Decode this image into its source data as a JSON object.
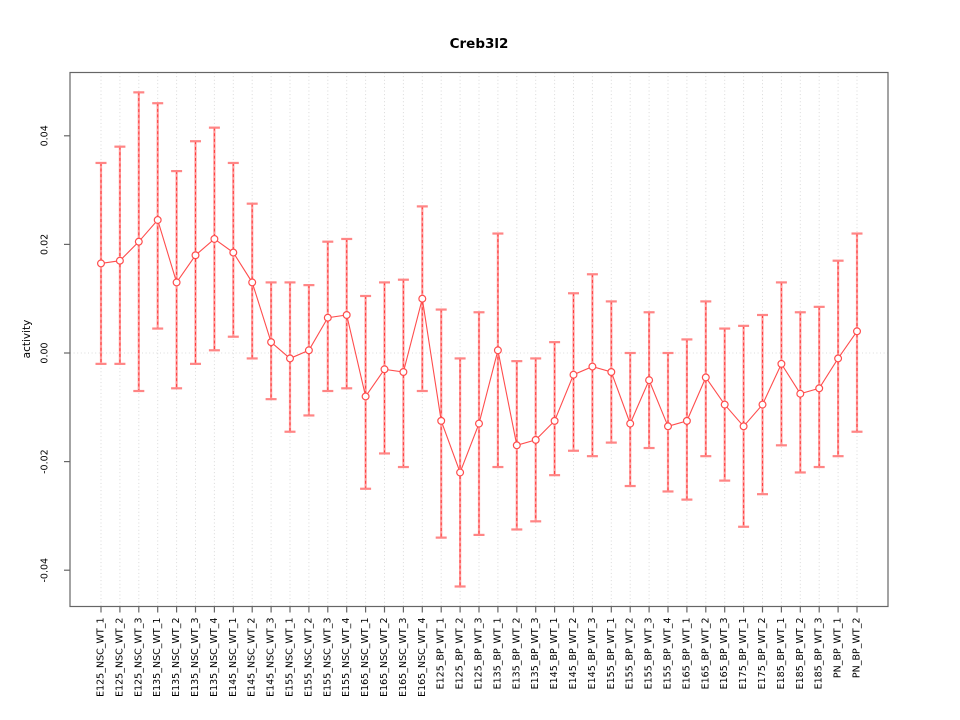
{
  "title": "Creb3l2",
  "axes": {
    "y_label": "activity",
    "y_ticks": [
      "0.04",
      "0.02",
      "0.00",
      "-0.02",
      "-0.04"
    ],
    "y_tick_values": [
      0.04,
      0.02,
      0.0,
      -0.02,
      -0.04
    ]
  },
  "colors": {
    "point_stroke": "#ff4d4d",
    "series_line": "#ff4d4d",
    "error_bar": "#ff9c9c",
    "error_bar_dash": "#ff3b3b",
    "error_cap": "#ff8585",
    "grid": "#d9d9d9",
    "zero_line": "#dcdcdc",
    "axis_frame": "#666666",
    "text": "#000000",
    "background": "#ffffff"
  },
  "chart_data": {
    "type": "scatter",
    "subtype": "points-with-error-bars",
    "title": "Creb3l2",
    "xlabel": "",
    "ylabel": "activity",
    "ylim": [
      -0.047,
      0.052
    ],
    "y_ticks": [
      0.04,
      0.02,
      0.0,
      -0.02,
      -0.04
    ],
    "grid": "vertical dotted gridline per category, dotted horizontal line at y=0",
    "legend_position": "none",
    "marker": "open-circle",
    "line_style": "solid red connecting line, dashed red over salmon error bars",
    "categories": [
      "E125_NSC_WT_1",
      "E125_NSC_WT_2",
      "E125_NSC_WT_3",
      "E135_NSC_WT_1",
      "E135_NSC_WT_2",
      "E135_NSC_WT_3",
      "E135_NSC_WT_4",
      "E145_NSC_WT_1",
      "E145_NSC_WT_2",
      "E145_NSC_WT_3",
      "E155_NSC_WT_1",
      "E155_NSC_WT_2",
      "E155_NSC_WT_3",
      "E155_NSC_WT_4",
      "E165_NSC_WT_1",
      "E165_NSC_WT_2",
      "E165_NSC_WT_3",
      "E165_NSC_WT_4",
      "E125_BP_WT_1",
      "E125_BP_WT_2",
      "E125_BP_WT_3",
      "E135_BP_WT_1",
      "E135_BP_WT_2",
      "E135_BP_WT_3",
      "E145_BP_WT_1",
      "E145_BP_WT_2",
      "E145_BP_WT_3",
      "E155_BP_WT_1",
      "E155_BP_WT_2",
      "E155_BP_WT_3",
      "E155_BP_WT_4",
      "E165_BP_WT_1",
      "E165_BP_WT_2",
      "E165_BP_WT_3",
      "E175_BP_WT_1",
      "E175_BP_WT_2",
      "E185_BP_WT_1",
      "E185_BP_WT_2",
      "E185_BP_WT_3",
      "PN_BP_WT_1",
      "PN_BP_WT_2"
    ],
    "series": [
      {
        "name": "activity (center)",
        "values": [
          0.0165,
          0.017,
          0.0205,
          0.0245,
          0.013,
          0.018,
          0.021,
          0.0185,
          0.013,
          0.002,
          -0.001,
          0.0005,
          0.0065,
          0.007,
          -0.008,
          -0.003,
          -0.0035,
          0.01,
          -0.0125,
          -0.022,
          -0.013,
          0.0005,
          -0.017,
          -0.016,
          -0.0125,
          -0.004,
          -0.0025,
          -0.0035,
          -0.013,
          -0.005,
          -0.0135,
          -0.0125,
          -0.0045,
          -0.0095,
          -0.0135,
          -0.0095,
          -0.002,
          -0.0075,
          -0.0065,
          -0.001,
          0.004
        ]
      },
      {
        "name": "upper error bound",
        "values": [
          0.035,
          0.038,
          0.048,
          0.046,
          0.0335,
          0.039,
          0.0415,
          0.035,
          0.0275,
          0.013,
          0.013,
          0.0125,
          0.0205,
          0.021,
          0.0105,
          0.013,
          0.0135,
          0.027,
          0.008,
          -0.001,
          0.0075,
          0.022,
          -0.0015,
          -0.001,
          0.002,
          0.011,
          0.0145,
          0.0095,
          0.0,
          0.0075,
          0.0,
          0.0025,
          0.0095,
          0.0045,
          0.005,
          0.007,
          0.013,
          0.0075,
          0.0085,
          0.017,
          0.022
        ]
      },
      {
        "name": "lower error bound",
        "values": [
          -0.002,
          -0.002,
          -0.007,
          0.0045,
          -0.0065,
          -0.002,
          0.0005,
          0.003,
          -0.001,
          -0.0085,
          -0.0145,
          -0.0115,
          -0.007,
          -0.0065,
          -0.025,
          -0.0185,
          -0.021,
          -0.007,
          -0.034,
          -0.043,
          -0.0335,
          -0.021,
          -0.0325,
          -0.031,
          -0.0225,
          -0.018,
          -0.019,
          -0.0165,
          -0.0245,
          -0.0175,
          -0.0255,
          -0.027,
          -0.019,
          -0.0235,
          -0.032,
          -0.026,
          -0.017,
          -0.022,
          -0.021,
          -0.019,
          -0.0145
        ]
      }
    ]
  }
}
